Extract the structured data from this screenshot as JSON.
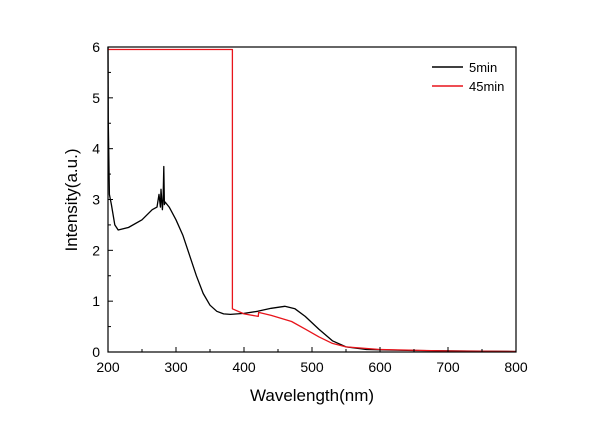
{
  "chart_data": {
    "type": "line",
    "title": "",
    "xlabel": "Wavelength(nm)",
    "ylabel": "Intensity(a.u.)",
    "xlim": [
      200,
      800
    ],
    "ylim": [
      0,
      6
    ],
    "xticks": [
      200,
      300,
      400,
      500,
      600,
      700,
      800
    ],
    "yticks": [
      0,
      1,
      2,
      3,
      4,
      5,
      6
    ],
    "grid": false,
    "legend_position": "top-right",
    "series": [
      {
        "name": "5min",
        "color": "#000000",
        "x": [
          200,
          200.5,
          201,
          202,
          205,
          210,
          215,
          230,
          250,
          265,
          272,
          275,
          277,
          278,
          280,
          281,
          282,
          283,
          284,
          290,
          300,
          310,
          320,
          330,
          340,
          350,
          360,
          370,
          380,
          400,
          420,
          440,
          460,
          475,
          490,
          510,
          530,
          550,
          580,
          650,
          800
        ],
        "y": [
          6.0,
          4.5,
          4.0,
          3.1,
          2.9,
          2.5,
          2.4,
          2.45,
          2.6,
          2.8,
          2.85,
          3.1,
          2.85,
          3.2,
          2.8,
          3.0,
          3.65,
          2.9,
          2.95,
          2.85,
          2.6,
          2.3,
          1.9,
          1.5,
          1.15,
          0.92,
          0.8,
          0.75,
          0.74,
          0.76,
          0.8,
          0.86,
          0.9,
          0.85,
          0.7,
          0.45,
          0.22,
          0.1,
          0.05,
          0.03,
          0.01
        ]
      },
      {
        "name": "45min",
        "color": "#e8141b",
        "x": [
          200,
          383,
          383,
          400,
          421,
          421.5,
          440,
          470,
          490,
          510,
          530,
          550,
          600,
          700,
          800
        ],
        "y": [
          5.95,
          5.95,
          0.85,
          0.75,
          0.7,
          0.78,
          0.72,
          0.6,
          0.45,
          0.3,
          0.17,
          0.1,
          0.05,
          0.02,
          0.01
        ]
      }
    ]
  }
}
